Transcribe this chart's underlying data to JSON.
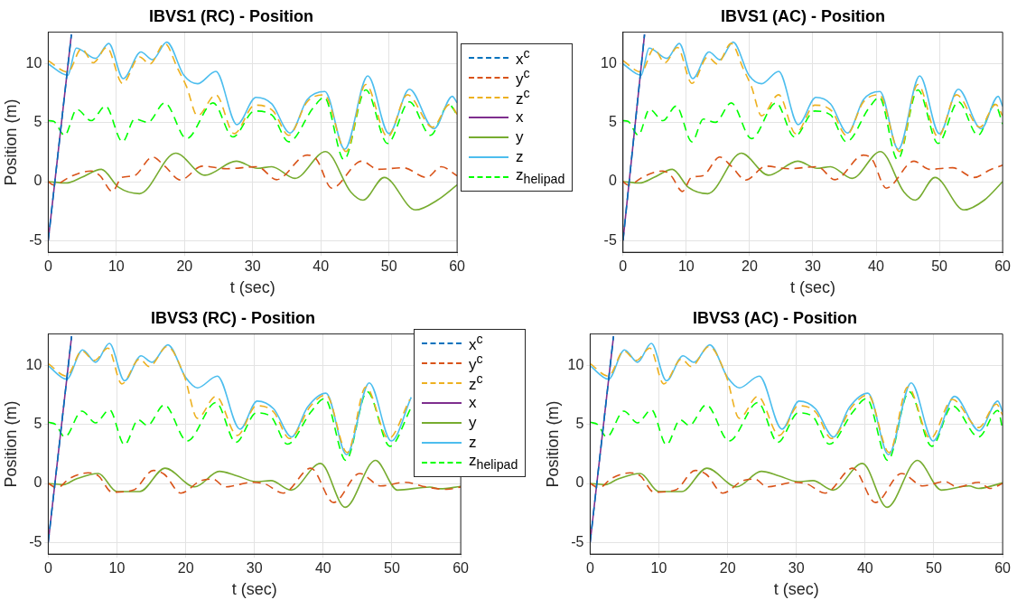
{
  "chart_data": [
    {
      "type": "line",
      "title": "IBVS1 (RC) - Position",
      "xlabel": "t (sec)",
      "ylabel": "Position (m)",
      "xlim": [
        0,
        60
      ],
      "xticks": [
        0,
        10,
        20,
        30,
        40,
        50,
        60
      ],
      "ylim": [
        -6,
        12.7
      ],
      "yticks": [
        -5,
        0,
        5,
        10
      ],
      "grid": true,
      "legend": "right",
      "series": [
        {
          "name": "x$^{c}$",
          "color": "#0072bd",
          "line_style": "dashed",
          "x": [
            0,
            3.4
          ],
          "values": [
            -5,
            12.5
          ]
        },
        {
          "name": "y$^{c}$",
          "color": "#d95319",
          "line_style": "dashed",
          "x": [
            0,
            0.8,
            3.5,
            6.3,
            7.6,
            9.4,
            10.8,
            12.6,
            15.3,
            17.1,
            19.4,
            22.6,
            26.2,
            30.7,
            33.5,
            38.0,
            39.4,
            41.6,
            46.0,
            48.4,
            52.1,
            55.5,
            57.7,
            60
          ],
          "values": [
            0,
            -0.28,
            0.5,
            0.91,
            0.5,
            -0.83,
            0.36,
            0.5,
            2.09,
            1.32,
            0.14,
            1.32,
            1.1,
            1.27,
            0.17,
            2.26,
            1.87,
            -0.55,
            1.74,
            1.05,
            1.18,
            0.36,
            1.27,
            0.5
          ]
        },
        {
          "name": "z$^{c}$",
          "color": "#edb120",
          "line_style": "dashed",
          "x": [
            0,
            2.86,
            4.9,
            6.6,
            8.6,
            10.9,
            13.4,
            14.9,
            17.1,
            19.0,
            20.3,
            21.9,
            24.6,
            27.3,
            30.3,
            33.0,
            35.3,
            38.0,
            40.5,
            43.7,
            46.6,
            49.8,
            52.7,
            56.4,
            58.9,
            60
          ],
          "values": [
            10.28,
            9.31,
            11.3,
            10.1,
            11.4,
            8.35,
            10.6,
            10.0,
            11.74,
            9.6,
            8.07,
            5.6,
            7.38,
            4.08,
            6.5,
            6.0,
            3.94,
            6.78,
            7.38,
            2.56,
            8.26,
            3.8,
            7.38,
            4.63,
            6.56,
            5.73
          ]
        },
        {
          "name": "x",
          "color": "#7e2f8e",
          "line_style": "solid",
          "x": [
            0,
            3.4
          ],
          "values": [
            -5,
            12.5
          ]
        },
        {
          "name": "y",
          "color": "#77ac30",
          "line_style": "solid",
          "x": [
            0,
            2.6,
            4.9,
            7.8,
            10.3,
            13.4,
            18.7,
            23.0,
            27.6,
            30.7,
            32.8,
            36.2,
            40.7,
            44.4,
            46.2,
            49.3,
            53.9,
            57.1,
            60
          ],
          "values": [
            0,
            -0.11,
            0.36,
            1.05,
            -0.47,
            -1.02,
            2.42,
            0.55,
            1.74,
            1.13,
            1.27,
            0.28,
            2.56,
            -0.88,
            -1.57,
            0.36,
            -2.4,
            -1.57,
            -0.28
          ]
        },
        {
          "name": "z",
          "color": "#4dbeee",
          "line_style": "solid",
          "x": [
            0,
            2.86,
            4.12,
            6.94,
            8.89,
            11.0,
            13.6,
            15.3,
            17.4,
            19.9,
            21.9,
            24.6,
            27.7,
            30.5,
            32.8,
            35.5,
            38.0,
            40.6,
            43.5,
            46.9,
            50.0,
            53.0,
            56.6,
            59.3,
            60
          ],
          "values": [
            10.0,
            9.04,
            11.35,
            10.47,
            11.74,
            8.76,
            11.02,
            10.36,
            11.85,
            9.04,
            8.32,
            9.37,
            4.85,
            7.16,
            6.61,
            4.13,
            6.97,
            7.66,
            2.75,
            8.98,
            4.08,
            7.85,
            4.49,
            7.25,
            6.69
          ]
        },
        {
          "name": "z$_{helipad}$",
          "color": "#00ff00",
          "line_style": "dashed",
          "x": [
            0,
            0.8,
            2.4,
            4.2,
            6.3,
            8.4,
            10.9,
            12.7,
            14.6,
            17.1,
            20.3,
            24.2,
            27.1,
            30.3,
            32.8,
            35.3,
            38.9,
            40.5,
            43.4,
            46.6,
            49.8,
            53.0,
            56.1,
            58.8,
            60
          ],
          "values": [
            5.18,
            5.12,
            3.94,
            6.14,
            5.18,
            6.42,
            3.39,
            5.32,
            5.04,
            6.69,
            3.66,
            6.69,
            3.8,
            6.0,
            5.67,
            3.39,
            6.28,
            7.16,
            1.87,
            7.8,
            3.25,
            6.78,
            3.94,
            6.56,
            5.67
          ]
        }
      ]
    },
    {
      "type": "line",
      "title": "IBVS1 (AC) - Position",
      "xlabel": "t (sec)",
      "xlim": [
        0,
        60
      ],
      "xticks": [
        0,
        10,
        20,
        30,
        40,
        50,
        60
      ],
      "ylim": [
        -6,
        12.7
      ],
      "yticks": [
        -5,
        0,
        5,
        10
      ],
      "grid": true,
      "series": [
        {
          "color": "#0072bd",
          "line_style": "dashed",
          "x": [
            0,
            3.4
          ],
          "values": [
            -5,
            12.5
          ]
        },
        {
          "color": "#d95319",
          "line_style": "dashed",
          "x": [
            0,
            0.8,
            3.5,
            6.3,
            7.6,
            9.4,
            10.8,
            12.6,
            15.3,
            17.1,
            19.4,
            22.6,
            26.2,
            30.7,
            33.5,
            38.0,
            39.4,
            41.6,
            46.0,
            48.4,
            52.1,
            55.5,
            58.0,
            60
          ],
          "values": [
            0,
            -0.28,
            0.5,
            0.91,
            0.5,
            -0.83,
            0.36,
            0.5,
            2.09,
            1.32,
            0.14,
            1.32,
            1.1,
            1.27,
            0.17,
            2.26,
            1.87,
            -0.55,
            1.74,
            1.05,
            1.18,
            0.36,
            1.0,
            1.4
          ]
        },
        {
          "color": "#edb120",
          "line_style": "dashed",
          "x": [
            0,
            2.86,
            4.9,
            6.6,
            8.6,
            10.9,
            13.4,
            14.9,
            17.1,
            19.0,
            20.3,
            21.9,
            24.6,
            27.3,
            30.3,
            33.0,
            35.3,
            38.0,
            40.5,
            43.7,
            46.6,
            49.8,
            52.7,
            56.4,
            58.9,
            60
          ],
          "values": [
            10.28,
            9.31,
            11.3,
            10.1,
            11.4,
            8.35,
            10.6,
            10.0,
            11.74,
            9.6,
            8.07,
            5.6,
            7.38,
            4.08,
            6.5,
            6.0,
            3.94,
            6.78,
            7.38,
            2.56,
            8.26,
            3.8,
            7.38,
            4.63,
            6.56,
            5.6
          ]
        },
        {
          "color": "#7e2f8e",
          "line_style": "solid",
          "x": [
            0,
            3.4
          ],
          "values": [
            -5,
            12.5
          ]
        },
        {
          "color": "#77ac30",
          "line_style": "solid",
          "x": [
            0,
            2.6,
            4.9,
            7.8,
            10.3,
            13.4,
            18.7,
            23.0,
            27.6,
            30.7,
            32.8,
            36.2,
            40.7,
            44.4,
            46.2,
            49.3,
            53.9,
            57.1,
            60
          ],
          "values": [
            0,
            -0.11,
            0.36,
            1.05,
            -0.47,
            -1.02,
            2.42,
            0.55,
            1.74,
            1.13,
            1.27,
            0.28,
            2.56,
            -0.88,
            -1.57,
            0.36,
            -2.4,
            -1.57,
            0
          ]
        },
        {
          "color": "#4dbeee",
          "line_style": "solid",
          "x": [
            0,
            2.86,
            4.12,
            6.94,
            8.89,
            11.0,
            13.6,
            15.3,
            17.4,
            19.9,
            21.9,
            24.6,
            27.7,
            30.5,
            32.8,
            35.5,
            38.0,
            40.6,
            43.5,
            46.9,
            50.0,
            53.0,
            56.6,
            59.3,
            60
          ],
          "values": [
            10.0,
            9.04,
            11.35,
            10.47,
            11.74,
            8.76,
            11.02,
            10.36,
            11.85,
            9.04,
            8.32,
            9.37,
            4.85,
            7.16,
            6.61,
            4.13,
            6.97,
            7.66,
            2.75,
            8.98,
            4.08,
            7.85,
            4.49,
            7.25,
            6.4
          ]
        },
        {
          "color": "#00ff00",
          "line_style": "dashed",
          "x": [
            0,
            0.8,
            2.4,
            4.2,
            6.3,
            8.4,
            10.9,
            12.7,
            14.6,
            17.1,
            20.3,
            24.2,
            27.1,
            30.3,
            32.8,
            35.3,
            38.9,
            40.5,
            43.4,
            46.6,
            49.8,
            53.0,
            56.1,
            58.8,
            60
          ],
          "values": [
            5.18,
            5.12,
            3.94,
            6.14,
            5.18,
            6.42,
            3.39,
            5.32,
            5.04,
            6.69,
            3.66,
            6.69,
            3.8,
            6.0,
            5.67,
            3.39,
            6.28,
            7.16,
            1.87,
            7.8,
            3.25,
            6.78,
            3.94,
            6.56,
            4.9
          ]
        }
      ]
    },
    {
      "type": "line",
      "title": "IBVS3 (RC) - Position",
      "xlabel": "t (sec)",
      "ylabel": "Position (m)",
      "xlim": [
        0,
        60
      ],
      "xticks": [
        0,
        10,
        20,
        30,
        40,
        50,
        60
      ],
      "ylim": [
        -6,
        12.7
      ],
      "yticks": [
        -5,
        0,
        5,
        10
      ],
      "grid": true,
      "legend": "top right",
      "series": [
        {
          "name": "x$^{c}$",
          "color": "#0072bd",
          "line_style": "dashed",
          "x": [
            0,
            3.4
          ],
          "values": [
            -5,
            12.5
          ]
        },
        {
          "name": "y$^{c}$",
          "color": "#d95319",
          "line_style": "dashed",
          "x": [
            0,
            1.3,
            3.1,
            5.8,
            7.3,
            9.3,
            12.4,
            15.3,
            16.9,
            19.3,
            22.2,
            24.0,
            25.7,
            29.7,
            31.5,
            34.2,
            38.2,
            41.5,
            45.3,
            48.4,
            51.9,
            55.0,
            58.0,
            60
          ],
          "values": [
            0,
            -0.37,
            0.42,
            0.9,
            0.64,
            -0.74,
            -0.56,
            1.11,
            0.77,
            -0.82,
            0.24,
            0.37,
            -0.29,
            0.1,
            -0.03,
            -0.82,
            1.3,
            -1.62,
            0.85,
            -0.21,
            0.1,
            -0.3,
            -0.5,
            -0.3
          ]
        },
        {
          "name": "z$^{c}$",
          "color": "#edb120",
          "line_style": "dashed",
          "x": [
            0,
            2.66,
            4.9,
            6.7,
            8.7,
            10.7,
            13.3,
            14.7,
            17.3,
            19.8,
            21.7,
            24.4,
            27.5,
            30.3,
            32.8,
            35.1,
            38.2,
            40.4,
            43.5,
            46.2,
            49.5,
            52.6
          ],
          "values": [
            10.19,
            9.12,
            11.25,
            10.45,
            11.5,
            8.46,
            10.58,
            9.92,
            11.64,
            9.12,
            5.54,
            7.4,
            4.08,
            6.6,
            6.07,
            3.82,
            6.6,
            7.53,
            2.63,
            8.2,
            3.82,
            7.14
          ]
        },
        {
          "name": "x",
          "color": "#7e2f8e",
          "line_style": "solid",
          "x": [
            0,
            3.4
          ],
          "values": [
            -5,
            12.5
          ]
        },
        {
          "name": "y",
          "color": "#77ac30",
          "line_style": "solid",
          "x": [
            0,
            2.2,
            4.0,
            7.3,
            10.0,
            13.3,
            17.0,
            21.3,
            24.9,
            27.5,
            30.2,
            32.4,
            35.3,
            39.6,
            43.2,
            47.6,
            50.8,
            55.5,
            57.0,
            60
          ],
          "values": [
            0,
            -0.1,
            0.37,
            0.85,
            -0.69,
            -0.69,
            1.3,
            -0.29,
            1.03,
            0.64,
            0.16,
            0.24,
            -0.56,
            1.7,
            -2.02,
            1.96,
            -0.56,
            -0.3,
            -0.45,
            -0.25
          ]
        },
        {
          "name": "z",
          "color": "#4dbeee",
          "line_style": "solid",
          "x": [
            0,
            2.66,
            5.0,
            6.9,
            8.9,
            11.1,
            13.5,
            15.1,
            17.4,
            20.0,
            21.7,
            24.6,
            27.9,
            30.4,
            32.8,
            35.4,
            37.7,
            40.4,
            43.4,
            46.7,
            49.9,
            52.8
          ],
          "values": [
            10.0,
            8.86,
            11.35,
            10.3,
            11.9,
            8.73,
            10.85,
            10.3,
            11.78,
            9.0,
            8.12,
            9.12,
            4.62,
            7.0,
            6.34,
            3.95,
            6.47,
            7.67,
            2.44,
            8.54,
            3.61,
            7.32
          ]
        },
        {
          "name": "z$_{helipad}$",
          "color": "#00ff00",
          "line_style": "dashed",
          "x": [
            0,
            1.1,
            2.4,
            4.9,
            6.9,
            8.9,
            11.1,
            13.1,
            14.4,
            16.9,
            20.2,
            24.4,
            27.3,
            30.3,
            32.4,
            34.8,
            38.2,
            40.2,
            43.3,
            46.4,
            49.7,
            52.8
          ],
          "values": [
            5.2,
            5.0,
            3.95,
            6.15,
            5.15,
            6.26,
            3.29,
            5.41,
            4.93,
            6.68,
            3.61,
            6.87,
            3.5,
            6.0,
            5.68,
            3.34,
            6.07,
            7.21,
            1.96,
            7.8,
            3.16,
            6.47
          ]
        }
      ]
    },
    {
      "type": "line",
      "title": "IBVS3 (AC) - Position",
      "xlabel": "t (sec)",
      "ylabel": "Position (m)",
      "xlim": [
        0,
        60
      ],
      "xticks": [
        0,
        10,
        20,
        30,
        40,
        50,
        60
      ],
      "ylim": [
        -6,
        12.7
      ],
      "yticks": [
        -5,
        0,
        5,
        10
      ],
      "grid": true,
      "series": [
        {
          "color": "#0072bd",
          "line_style": "dashed",
          "x": [
            0,
            3.4
          ],
          "values": [
            -5,
            12.5
          ]
        },
        {
          "color": "#d95319",
          "line_style": "dashed",
          "x": [
            0,
            1.3,
            3.1,
            5.8,
            7.3,
            9.3,
            12.4,
            15.3,
            16.9,
            19.3,
            22.2,
            24.0,
            25.7,
            29.7,
            31.5,
            34.2,
            38.2,
            41.5,
            45.3,
            48.4,
            51.6,
            53.4,
            56.5,
            58.2,
            60
          ],
          "values": [
            0,
            -0.37,
            0.42,
            0.9,
            0.64,
            -0.74,
            -0.56,
            1.11,
            0.77,
            -0.82,
            0.24,
            0.37,
            -0.29,
            0.1,
            -0.03,
            -0.82,
            1.3,
            -1.62,
            0.85,
            -0.21,
            0.16,
            -0.29,
            0.1,
            -0.42,
            0
          ]
        },
        {
          "color": "#edb120",
          "line_style": "dashed",
          "x": [
            0,
            2.66,
            4.9,
            6.7,
            8.7,
            10.7,
            13.3,
            14.7,
            17.3,
            19.8,
            21.7,
            24.4,
            27.5,
            30.3,
            32.8,
            35.1,
            38.2,
            40.4,
            43.5,
            46.2,
            49.5,
            52.7,
            56.5,
            59.1,
            60
          ],
          "values": [
            10.19,
            9.12,
            11.25,
            10.45,
            11.5,
            8.46,
            10.58,
            9.92,
            11.64,
            9.12,
            5.54,
            7.4,
            4.08,
            6.6,
            6.07,
            3.82,
            6.6,
            7.53,
            2.63,
            8.2,
            3.82,
            7.14,
            4.75,
            6.74,
            5.8
          ]
        },
        {
          "color": "#7e2f8e",
          "line_style": "solid",
          "x": [
            0,
            3.4
          ],
          "values": [
            -5,
            12.5
          ]
        },
        {
          "color": "#77ac30",
          "line_style": "solid",
          "x": [
            0,
            2.2,
            4.0,
            7.3,
            10.0,
            13.3,
            17.0,
            21.3,
            24.9,
            27.5,
            30.2,
            32.4,
            35.3,
            39.6,
            43.2,
            47.6,
            51.1,
            55.1,
            56.5,
            60
          ],
          "values": [
            0,
            -0.1,
            0.37,
            0.85,
            -0.69,
            -0.69,
            1.3,
            -0.29,
            1.03,
            0.64,
            0.16,
            0.24,
            -0.56,
            1.7,
            -2.02,
            1.96,
            -0.56,
            -0.21,
            -0.42,
            0.05
          ]
        },
        {
          "color": "#4dbeee",
          "line_style": "solid",
          "x": [
            0,
            2.66,
            5.0,
            6.9,
            8.9,
            11.1,
            13.5,
            15.1,
            17.4,
            20.0,
            21.7,
            24.6,
            27.9,
            30.4,
            32.8,
            35.4,
            37.7,
            40.4,
            43.4,
            46.7,
            49.9,
            53.0,
            56.6,
            59.3,
            60
          ],
          "values": [
            10.0,
            8.86,
            11.35,
            10.3,
            11.9,
            8.73,
            10.85,
            10.3,
            11.78,
            9.0,
            8.12,
            9.12,
            4.62,
            7.0,
            6.34,
            3.95,
            6.47,
            7.67,
            2.44,
            8.54,
            3.61,
            7.4,
            4.48,
            7.0,
            6.07
          ]
        },
        {
          "color": "#00ff00",
          "line_style": "dashed",
          "x": [
            0,
            1.1,
            2.4,
            4.9,
            6.9,
            8.9,
            11.1,
            13.1,
            14.4,
            16.9,
            20.2,
            24.4,
            27.3,
            30.3,
            32.4,
            34.8,
            38.2,
            40.2,
            43.3,
            46.4,
            49.7,
            52.7,
            56.5,
            59.3,
            60
          ],
          "values": [
            5.2,
            5.0,
            3.95,
            6.15,
            5.15,
            6.26,
            3.29,
            5.41,
            4.93,
            6.68,
            3.61,
            6.87,
            3.5,
            6.0,
            5.68,
            3.34,
            6.07,
            7.21,
            1.96,
            7.8,
            3.16,
            6.6,
            3.95,
            6.2,
            4.6
          ]
        }
      ]
    }
  ]
}
